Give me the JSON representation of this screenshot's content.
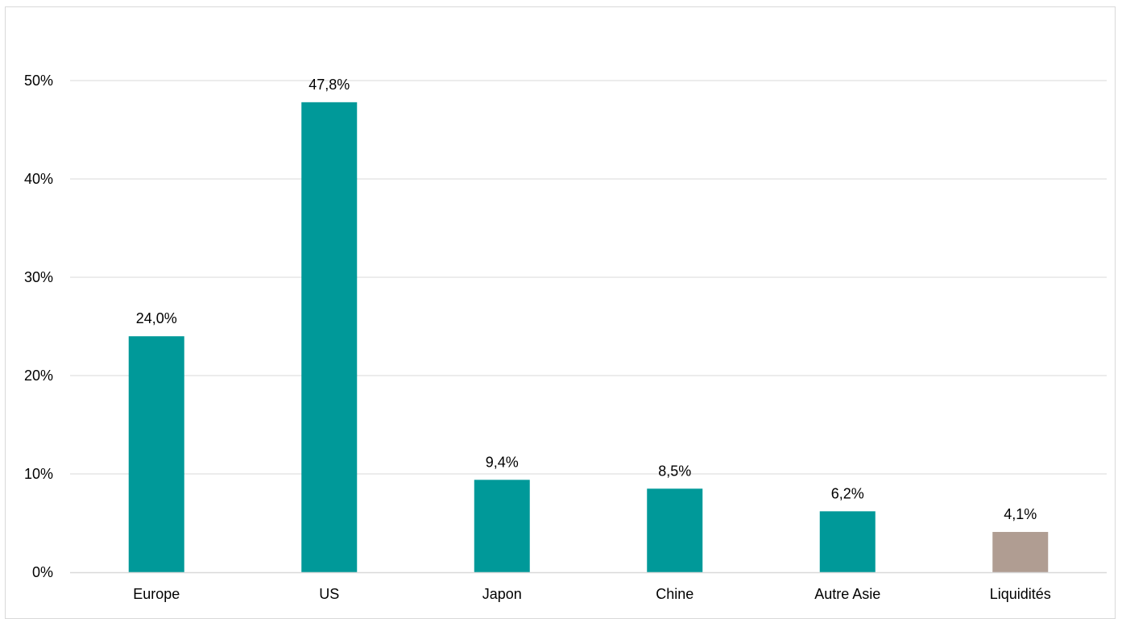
{
  "chart_data": {
    "type": "bar",
    "title": "",
    "xlabel": "",
    "ylabel": "",
    "categories": [
      "Europe",
      "US",
      "Japon",
      "Chine",
      "Autre Asie",
      "Liquidités"
    ],
    "values": [
      24.0,
      47.8,
      9.4,
      8.5,
      6.2,
      4.1
    ],
    "data_labels": [
      "24,0%",
      "47,8%",
      "9,4%",
      "8,5%",
      "6,2%",
      "4,1%"
    ],
    "bar_colors": [
      "#009999",
      "#009999",
      "#009999",
      "#009999",
      "#009999",
      "#b09d92"
    ],
    "ylim": [
      0,
      50
    ],
    "yticks": [
      0,
      10,
      20,
      30,
      40,
      50
    ],
    "ytick_labels": [
      "0%",
      "10%",
      "20%",
      "30%",
      "40%",
      "50%"
    ],
    "grid": true,
    "grid_color": "#d9d9d9",
    "legend": "none"
  }
}
